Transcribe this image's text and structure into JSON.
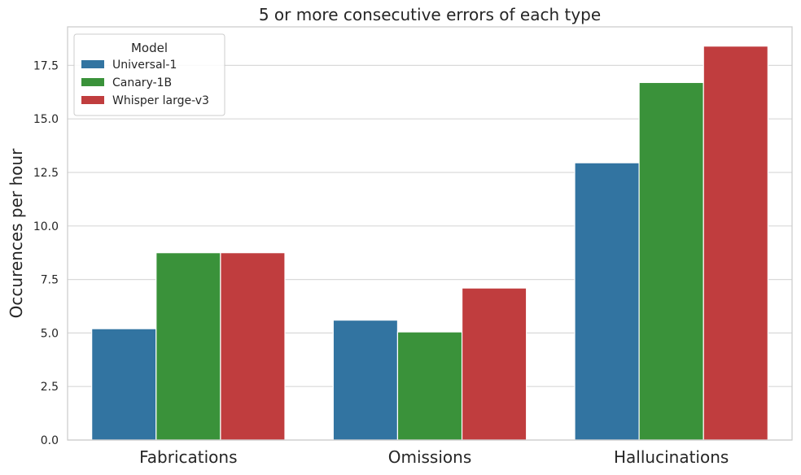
{
  "chart_data": {
    "type": "bar",
    "title": "5 or more consecutive errors of each type",
    "xlabel": "",
    "ylabel": "Occurences per hour",
    "categories": [
      "Fabrications",
      "Omissions",
      "Hallucinations"
    ],
    "series": [
      {
        "name": "Universal-1",
        "color": "#3274a1",
        "values": [
          5.2,
          5.6,
          12.95
        ]
      },
      {
        "name": "Canary-1B",
        "color": "#3a923a",
        "values": [
          8.75,
          5.05,
          16.7
        ]
      },
      {
        "name": "Whisper large-v3",
        "color": "#c03d3e",
        "values": [
          8.75,
          7.1,
          18.4
        ]
      }
    ],
    "ylim": [
      0,
      19.3
    ],
    "yticks": [
      0.0,
      2.5,
      5.0,
      7.5,
      10.0,
      12.5,
      15.0,
      17.5
    ],
    "ytick_labels": [
      "0.0",
      "2.5",
      "5.0",
      "7.5",
      "10.0",
      "12.5",
      "15.0",
      "17.5"
    ],
    "grid": "horizontal",
    "legend": {
      "title": "Model",
      "position": "top-left"
    }
  }
}
